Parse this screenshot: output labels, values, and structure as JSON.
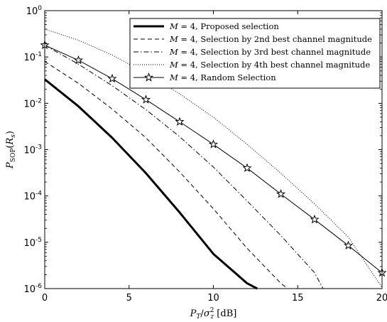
{
  "chart_data": {
    "type": "line",
    "xlabel": "P_T/σ_z² [dB]",
    "ylabel": "P_SOP(R_s)",
    "xlim": [
      0,
      20
    ],
    "ylim": [
      1e-06,
      1
    ],
    "yscale": "log",
    "grid": false,
    "legend_position": "top-right",
    "x_ticks": [
      0,
      5,
      10,
      15,
      20
    ],
    "x_tick_labels": [
      "0",
      "5",
      "10",
      "15",
      "20"
    ],
    "y_tick_labels": [
      {
        "base": "10",
        "exp": "-6"
      },
      {
        "base": "10",
        "exp": "-5"
      },
      {
        "base": "10",
        "exp": "-4"
      },
      {
        "base": "10",
        "exp": "-3"
      },
      {
        "base": "10",
        "exp": "-2"
      },
      {
        "base": "10",
        "exp": "-1"
      },
      {
        "base": "10",
        "exp": "0"
      }
    ],
    "series": [
      {
        "name": "M = 4, Proposed selection",
        "style": "solid-thick",
        "color": "#000000",
        "x": [
          0,
          2,
          4,
          6,
          8,
          10,
          12,
          12.6
        ],
        "y": [
          0.033,
          0.0086,
          0.0018,
          0.00031,
          4.4e-05,
          5.6e-06,
          1.3e-06,
          1e-06
        ]
      },
      {
        "name": "M = 4, Selection by 2nd best channel magnitude",
        "style": "dashed",
        "color": "#000000",
        "x": [
          0,
          2,
          4,
          6,
          8,
          10,
          12,
          14,
          14.4
        ],
        "y": [
          0.08,
          0.027,
          0.0075,
          0.0018,
          0.00033,
          5.3e-05,
          7.4e-06,
          1.3e-06,
          1e-06
        ]
      },
      {
        "name": "M = 4, Selection by 3rd best channel magnitude",
        "style": "dash-dot",
        "color": "#000000",
        "x": [
          0,
          2,
          4,
          6,
          8,
          10,
          12,
          14,
          16,
          16.5
        ],
        "y": [
          0.18,
          0.07,
          0.024,
          0.0073,
          0.0019,
          0.00042,
          7.8e-05,
          1.4e-05,
          2.2e-06,
          1e-06
        ]
      },
      {
        "name": "M = 4, Selection by 4th best channel magnitude",
        "style": "dotted",
        "color": "#000000",
        "x": [
          0,
          2,
          4,
          6,
          8,
          10,
          12,
          14,
          16,
          18,
          20
        ],
        "y": [
          0.4,
          0.23,
          0.11,
          0.045,
          0.016,
          0.005,
          0.0013,
          0.00031,
          6.7e-05,
          1.3e-05,
          1.05e-06
        ]
      },
      {
        "name": "M = 4, Random Selection",
        "style": "solid-star",
        "color": "#000000",
        "x": [
          0,
          2,
          4,
          6,
          8,
          10,
          12,
          14,
          16,
          18,
          20
        ],
        "y": [
          0.18,
          0.085,
          0.034,
          0.012,
          0.004,
          0.0013,
          0.0004,
          0.00011,
          3.1e-05,
          8.5e-06,
          2.2e-06
        ]
      }
    ],
    "legend": [
      {
        "prefix": "M = 4,",
        "text": "Proposed selection"
      },
      {
        "prefix": "M = 4,",
        "text": "Selection by 2nd best channel magnitude"
      },
      {
        "prefix": "M = 4,",
        "text": "Selection by 3rd best channel magnitude"
      },
      {
        "prefix": "M = 4,",
        "text": "Selection by 4th best channel magnitude"
      },
      {
        "prefix": "M = 4,",
        "text": "Random Selection"
      }
    ]
  }
}
